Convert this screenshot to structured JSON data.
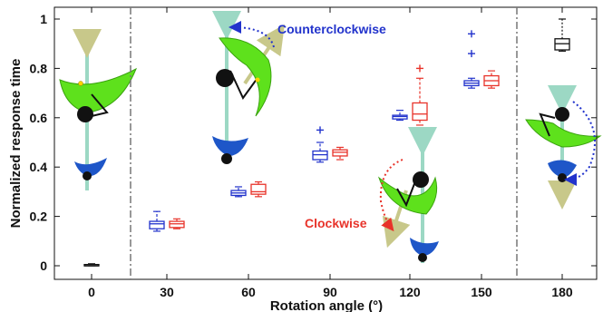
{
  "chart_data": {
    "type": "boxplot",
    "title": "",
    "xlabel": "Rotation angle (°)",
    "ylabel": "Normalized response time",
    "x_ticks": [
      0,
      30,
      60,
      90,
      120,
      150,
      180
    ],
    "y_ticks": [
      "0",
      "0.2",
      "0.4",
      "0.6",
      "0.8",
      "1"
    ],
    "ylim": [
      -0.05,
      1.05
    ],
    "grid": false,
    "colors": {
      "Counterclockwise": "#2233cc",
      "Clockwise": "#e8332a",
      "Baseline": "#111111"
    },
    "annotations": [
      {
        "text": "Counterclockwise",
        "color": "#2233cc"
      },
      {
        "text": "Clockwise",
        "color": "#e8332a"
      }
    ],
    "boxes": [
      {
        "angle": 0,
        "group": "Baseline",
        "min": 0.0,
        "q1": 0.0,
        "median": 0.0,
        "q3": 0.005,
        "max": 0.008,
        "outliers": []
      },
      {
        "angle": 30,
        "group": "Counterclockwise",
        "min": 0.14,
        "q1": 0.15,
        "median": 0.17,
        "q3": 0.18,
        "max": 0.22,
        "outliers": []
      },
      {
        "angle": 30,
        "group": "Clockwise",
        "min": 0.15,
        "q1": 0.155,
        "median": 0.17,
        "q3": 0.18,
        "max": 0.19,
        "outliers": []
      },
      {
        "angle": 60,
        "group": "Counterclockwise",
        "min": 0.28,
        "q1": 0.285,
        "median": 0.295,
        "q3": 0.305,
        "max": 0.32,
        "outliers": []
      },
      {
        "angle": 60,
        "group": "Clockwise",
        "min": 0.28,
        "q1": 0.29,
        "median": 0.3,
        "q3": 0.33,
        "max": 0.34,
        "outliers": []
      },
      {
        "angle": 90,
        "group": "Counterclockwise",
        "min": 0.42,
        "q1": 0.43,
        "median": 0.45,
        "q3": 0.465,
        "max": 0.5,
        "outliers": [
          0.55
        ]
      },
      {
        "angle": 90,
        "group": "Clockwise",
        "min": 0.43,
        "q1": 0.445,
        "median": 0.46,
        "q3": 0.47,
        "max": 0.48,
        "outliers": []
      },
      {
        "angle": 120,
        "group": "Counterclockwise",
        "min": 0.59,
        "q1": 0.595,
        "median": 0.605,
        "q3": 0.61,
        "max": 0.63,
        "outliers": []
      },
      {
        "angle": 120,
        "group": "Clockwise",
        "min": 0.57,
        "q1": 0.59,
        "median": 0.615,
        "q3": 0.66,
        "max": 0.76,
        "outliers": [
          0.8
        ]
      },
      {
        "angle": 150,
        "group": "Counterclockwise",
        "min": 0.72,
        "q1": 0.73,
        "median": 0.74,
        "q3": 0.75,
        "max": 0.76,
        "outliers": [
          0.86,
          0.94
        ]
      },
      {
        "angle": 150,
        "group": "Clockwise",
        "min": 0.72,
        "q1": 0.73,
        "median": 0.75,
        "q3": 0.77,
        "max": 0.79,
        "outliers": []
      },
      {
        "angle": 180,
        "group": "Baseline",
        "min": 0.87,
        "q1": 0.875,
        "median": 0.9,
        "q3": 0.92,
        "max": 1.0,
        "outliers": []
      }
    ]
  }
}
